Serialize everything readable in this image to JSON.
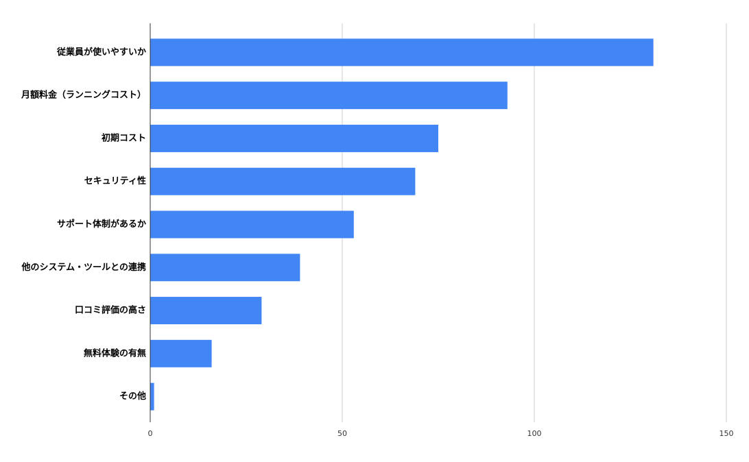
{
  "chart_data": {
    "type": "bar",
    "orientation": "horizontal",
    "categories": [
      "従業員が使いやすいか",
      "月額料金（ランニングコスト）",
      "初期コスト",
      "セキュリティ性",
      "サポート体制があるか",
      "他のシステム・ツールとの連携",
      "口コミ評価の高さ",
      "無料体験の有無",
      "その他"
    ],
    "values": [
      131,
      93,
      75,
      69,
      53,
      39,
      29,
      16,
      1
    ],
    "color": "#4285f4",
    "xlim": [
      0,
      150
    ],
    "xticks": [
      0,
      50,
      100,
      150
    ],
    "grid": true
  }
}
